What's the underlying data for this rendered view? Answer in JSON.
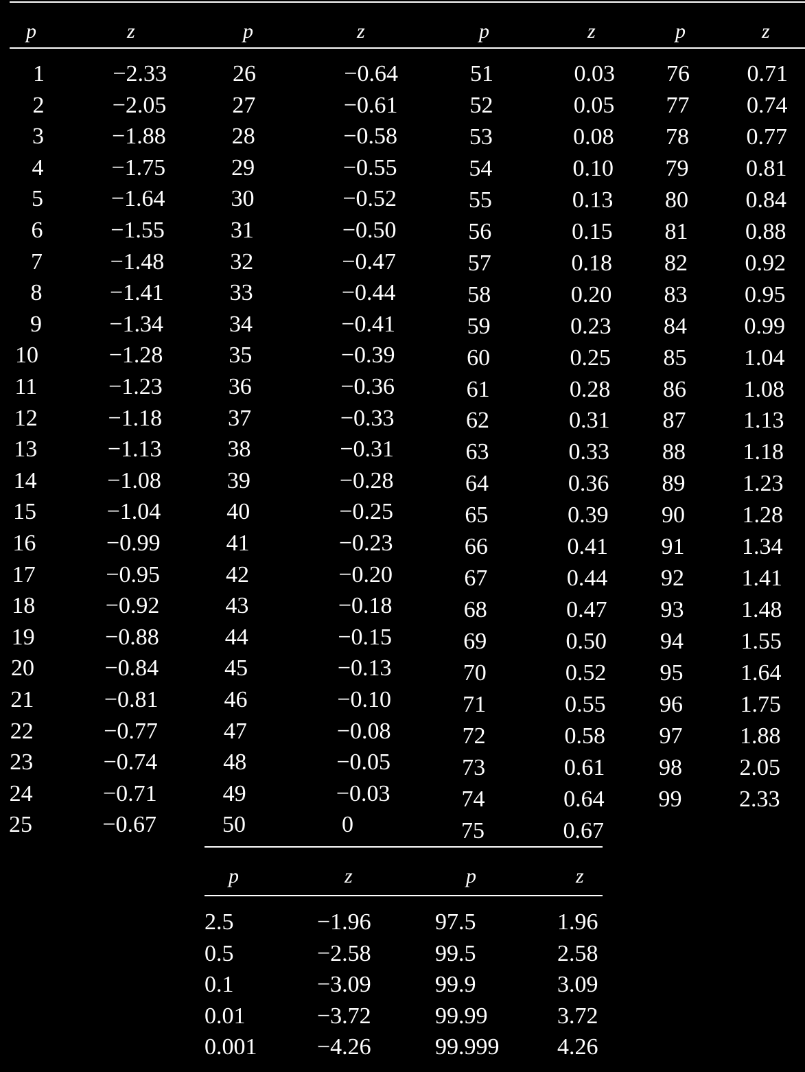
{
  "main_table": {
    "headers": [
      "p",
      "z",
      "p",
      "z",
      "p",
      "z",
      "p",
      "z"
    ],
    "blocks": [
      {
        "p": [
          "1",
          "2",
          "3",
          "4",
          "5",
          "6",
          "7",
          "8",
          "9",
          "10",
          "11",
          "12",
          "13",
          "14",
          "15",
          "16",
          "17",
          "18",
          "19",
          "20",
          "21",
          "22",
          "23",
          "24",
          "25"
        ],
        "z": [
          "−2.33",
          "−2.05",
          "−1.88",
          "−1.75",
          "−1.64",
          "−1.55",
          "−1.48",
          "−1.41",
          "−1.34",
          "−1.28",
          "−1.23",
          "−1.18",
          "−1.13",
          "−1.08",
          "−1.04",
          "−0.99",
          "−0.95",
          "−0.92",
          "−0.88",
          "−0.84",
          "−0.81",
          "−0.77",
          "−0.74",
          "−0.71",
          "−0.67"
        ]
      },
      {
        "p": [
          "26",
          "27",
          "28",
          "29",
          "30",
          "31",
          "32",
          "33",
          "34",
          "35",
          "36",
          "37",
          "38",
          "39",
          "40",
          "41",
          "42",
          "43",
          "44",
          "45",
          "46",
          "47",
          "48",
          "49",
          "50"
        ],
        "z": [
          "−0.64",
          "−0.61",
          "−0.58",
          "−0.55",
          "−0.52",
          "−0.50",
          "−0.47",
          "−0.44",
          "−0.41",
          "−0.39",
          "−0.36",
          "−0.33",
          "−0.31",
          "−0.28",
          "−0.25",
          "−0.23",
          "−0.20",
          "−0.18",
          "−0.15",
          "−0.13",
          "−0.10",
          "−0.08",
          "−0.05",
          "−0.03",
          "0"
        ]
      },
      {
        "p": [
          "51",
          "52",
          "53",
          "54",
          "55",
          "56",
          "57",
          "58",
          "59",
          "60",
          "61",
          "62",
          "63",
          "64",
          "65",
          "66",
          "67",
          "68",
          "69",
          "70",
          "71",
          "72",
          "73",
          "74",
          "75"
        ],
        "z": [
          "0.03",
          "0.05",
          "0.08",
          "0.10",
          "0.13",
          "0.15",
          "0.18",
          "0.20",
          "0.23",
          "0.25",
          "0.28",
          "0.31",
          "0.33",
          "0.36",
          "0.39",
          "0.41",
          "0.44",
          "0.47",
          "0.50",
          "0.52",
          "0.55",
          "0.58",
          "0.61",
          "0.64",
          "0.67"
        ]
      },
      {
        "p": [
          "76",
          "77",
          "78",
          "79",
          "80",
          "81",
          "82",
          "83",
          "84",
          "85",
          "86",
          "87",
          "88",
          "89",
          "90",
          "91",
          "92",
          "93",
          "94",
          "95",
          "96",
          "97",
          "98",
          "99"
        ],
        "z": [
          "0.71",
          "0.74",
          "0.77",
          "0.81",
          "0.84",
          "0.88",
          "0.92",
          "0.95",
          "0.99",
          "1.04",
          "1.08",
          "1.13",
          "1.18",
          "1.23",
          "1.28",
          "1.34",
          "1.41",
          "1.48",
          "1.55",
          "1.64",
          "1.75",
          "1.88",
          "2.05",
          "2.33"
        ]
      }
    ]
  },
  "small_table": {
    "headers": [
      "p",
      "z",
      "p",
      "z"
    ],
    "p_low": [
      "2.5",
      "0.5",
      "0.1",
      "0.01",
      "0.001"
    ],
    "z_low": [
      "−1.96",
      "−2.58",
      "−3.09",
      "−3.72",
      "−4.26"
    ],
    "p_high": [
      "97.5",
      "99.5",
      "99.9",
      "99.99",
      "99.999"
    ],
    "z_high": [
      "1.96",
      "2.58",
      "3.09",
      "3.72",
      "4.26"
    ]
  },
  "colors": {
    "background": "#000000",
    "text": "#ffffff"
  }
}
